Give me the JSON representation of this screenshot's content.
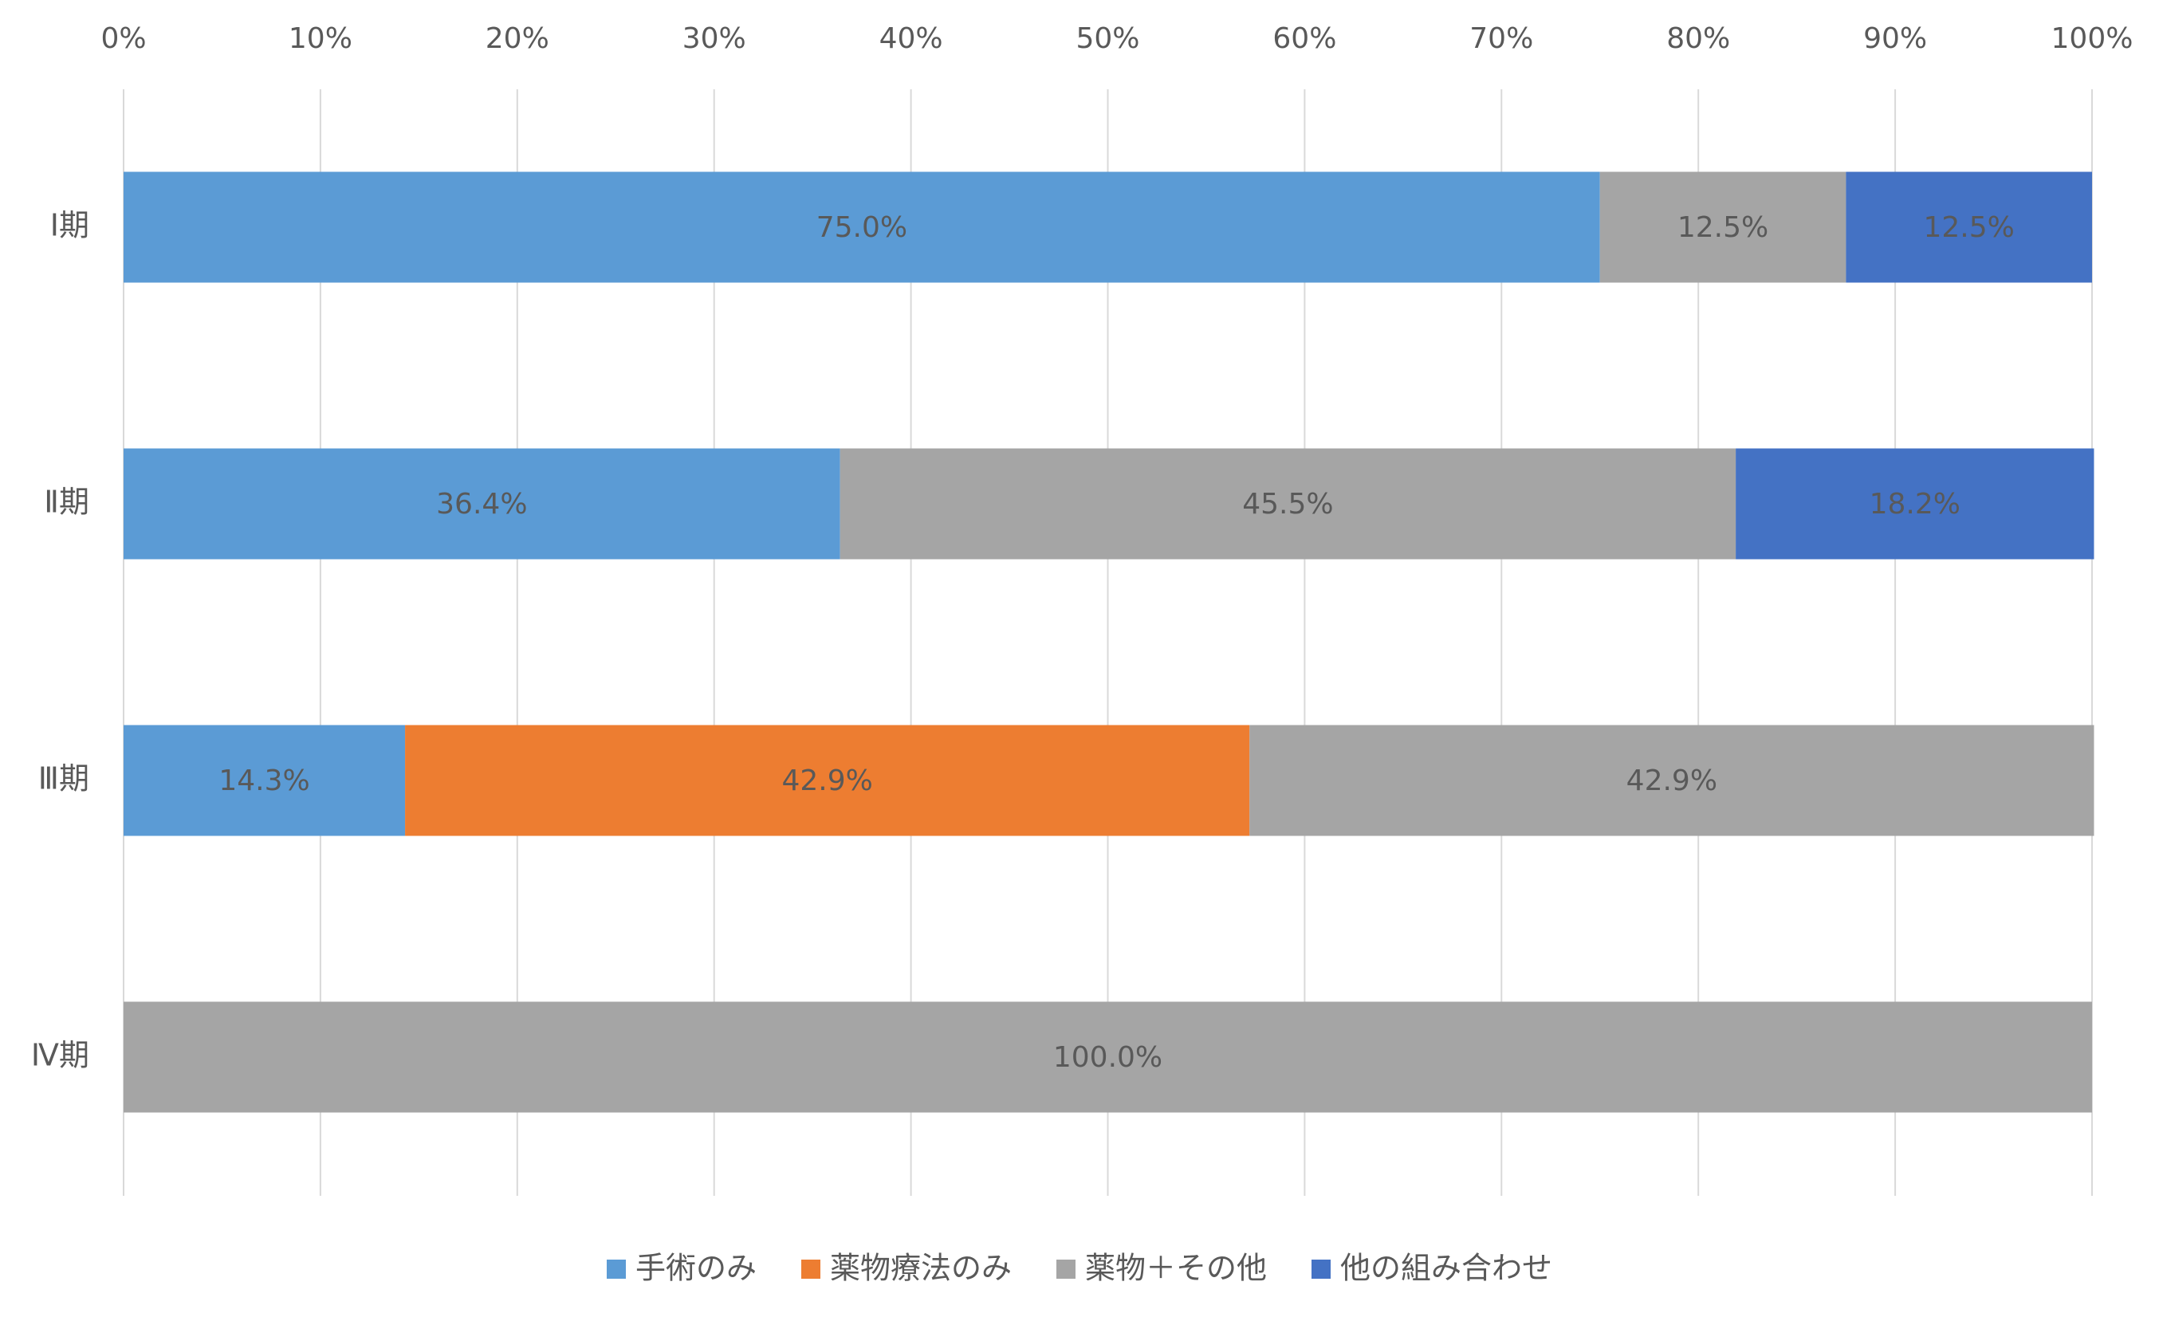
{
  "chart_data": {
    "type": "bar",
    "orientation": "horizontal",
    "stacked": "percent",
    "title": "",
    "xlabel": "",
    "ylabel": "",
    "xlim": [
      0,
      100
    ],
    "x_ticks": [
      "0%",
      "10%",
      "20%",
      "30%",
      "40%",
      "50%",
      "60%",
      "70%",
      "80%",
      "90%",
      "100%"
    ],
    "x_axis_position": "top",
    "grid": true,
    "legend_position": "bottom",
    "categories": [
      "Ⅰ期",
      "Ⅱ期",
      "Ⅲ期",
      "Ⅳ期"
    ],
    "series": [
      {
        "name": "手術のみ",
        "color": "#5B9BD5",
        "values": [
          75.0,
          36.4,
          14.3,
          0
        ],
        "labels": [
          "75.0%",
          "36.4%",
          "14.3%",
          ""
        ]
      },
      {
        "name": "薬物療法のみ",
        "color": "#ED7D31",
        "values": [
          0,
          0,
          42.9,
          0
        ],
        "labels": [
          "",
          "",
          "42.9%",
          ""
        ]
      },
      {
        "name": "薬物＋その他",
        "color": "#A5A5A5",
        "values": [
          12.5,
          45.5,
          42.9,
          100.0
        ],
        "labels": [
          "12.5%",
          "45.5%",
          "42.9%",
          "100.0%"
        ]
      },
      {
        "name": "他の組み合わせ",
        "color": "#4472C4",
        "values": [
          12.5,
          18.2,
          0,
          0
        ],
        "labels": [
          "12.5%",
          "18.2%",
          "",
          ""
        ]
      }
    ],
    "text_color": "#595959",
    "grid_color": "#D9D9D9"
  }
}
